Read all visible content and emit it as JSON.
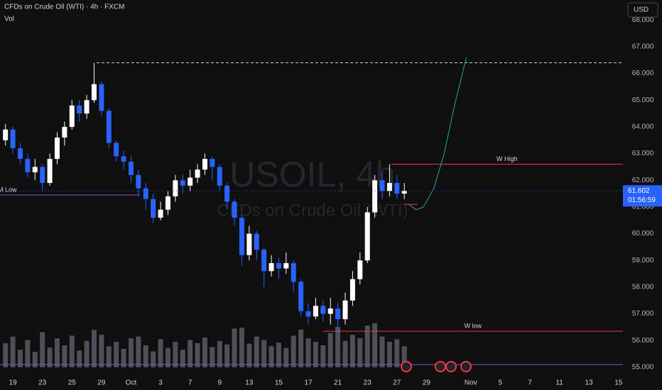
{
  "chart_data": {
    "type": "candlestick",
    "title": "CFDs on Crude Oil (WTI) · 4h · FXCM",
    "volume_label": "Vol",
    "currency": "USD",
    "watermark": "USOIL, 4h",
    "watermark_subtitle": "CFDs on Crude Oil (WTI)",
    "up_color": "#ffffff",
    "down_color": "#2962ff",
    "volume_color": "#5d606b",
    "x": [
      -0.5,
      0,
      0.5,
      1,
      1.5,
      2,
      2.5,
      3,
      3.5,
      4,
      4.5,
      5,
      5.5,
      6,
      6.5,
      7,
      7.5,
      8,
      8.5,
      9,
      9.5,
      10,
      10.5,
      11,
      11.5,
      12,
      12.5,
      13,
      13.5,
      14,
      14.5,
      15,
      15.5,
      16,
      16.5,
      17,
      17.5,
      18,
      18.5,
      19,
      19.5,
      20,
      20.5,
      21,
      21.5,
      22,
      22.5,
      23,
      23.5,
      24,
      24.5,
      25,
      25.5,
      26,
      26.5
    ],
    "open": [
      63.5,
      63.9,
      63.2,
      62.8,
      62.3,
      62.5,
      61.9,
      62.8,
      63.6,
      64.0,
      64.8,
      64.5,
      65.0,
      65.6,
      64.6,
      63.4,
      62.9,
      62.7,
      62.2,
      61.7,
      61.3,
      60.6,
      60.9,
      61.4,
      62.0,
      61.8,
      62.1,
      62.4,
      62.8,
      62.5,
      61.8,
      61.2,
      60.6,
      59.2,
      60.0,
      59.4,
      58.6,
      58.9,
      58.7,
      58.9,
      58.2,
      57.1,
      56.9,
      57.3,
      57.0,
      57.2,
      56.8,
      57.5,
      58.3,
      59.0,
      60.8,
      62.0,
      61.6,
      61.9,
      61.5
    ],
    "high": [
      64.1,
      64.0,
      63.4,
      63.0,
      62.8,
      62.6,
      63.0,
      63.8,
      64.2,
      65.0,
      65.0,
      65.2,
      66.4,
      65.7,
      64.7,
      63.5,
      63.1,
      62.9,
      62.4,
      61.9,
      61.5,
      61.2,
      61.6,
      62.2,
      62.2,
      62.4,
      62.6,
      63.0,
      62.9,
      62.6,
      61.9,
      61.3,
      60.7,
      60.3,
      60.1,
      59.5,
      59.2,
      59.1,
      59.3,
      59.0,
      58.3,
      57.4,
      57.6,
      57.5,
      57.6,
      57.4,
      57.8,
      58.6,
      59.3,
      61.0,
      62.2,
      62.3,
      62.6,
      62.2,
      61.9
    ],
    "low": [
      63.3,
      63.0,
      62.6,
      62.1,
      62.0,
      61.6,
      61.8,
      62.6,
      63.3,
      63.9,
      64.2,
      64.3,
      64.9,
      64.4,
      63.2,
      62.7,
      62.4,
      61.9,
      61.4,
      60.9,
      60.4,
      60.5,
      60.7,
      61.2,
      61.5,
      61.6,
      61.9,
      62.2,
      62.0,
      61.6,
      60.9,
      60.3,
      58.8,
      59.0,
      59.0,
      58.0,
      58.4,
      58.3,
      58.5,
      57.8,
      56.9,
      56.6,
      56.8,
      56.7,
      56.6,
      56.3,
      56.6,
      57.3,
      58.1,
      58.9,
      60.6,
      61.3,
      61.4,
      61.3,
      61.3
    ],
    "close": [
      63.9,
      63.2,
      62.8,
      62.3,
      62.5,
      61.9,
      62.8,
      63.6,
      64.0,
      64.8,
      64.5,
      65.0,
      65.6,
      64.6,
      63.4,
      62.9,
      62.7,
      62.2,
      61.7,
      61.3,
      60.6,
      60.9,
      61.4,
      62.0,
      61.8,
      62.1,
      62.4,
      62.8,
      62.5,
      61.8,
      61.2,
      60.6,
      59.2,
      60.0,
      59.4,
      58.6,
      58.9,
      58.7,
      58.9,
      58.2,
      57.1,
      56.9,
      57.3,
      57.0,
      57.2,
      56.8,
      57.5,
      58.3,
      59.0,
      60.8,
      62.0,
      61.6,
      61.9,
      61.5,
      61.602
    ],
    "volume": [
      55,
      70,
      40,
      62,
      35,
      80,
      45,
      66,
      50,
      72,
      38,
      60,
      85,
      74,
      48,
      58,
      42,
      66,
      70,
      50,
      36,
      64,
      44,
      58,
      40,
      62,
      55,
      68,
      46,
      60,
      52,
      88,
      90,
      54,
      70,
      62,
      48,
      56,
      44,
      72,
      86,
      66,
      58,
      50,
      78,
      92,
      60,
      74,
      66,
      95,
      100,
      70,
      58,
      64,
      48
    ],
    "vlim": [
      0,
      100
    ],
    "xlim": [
      -0.87,
      41.3
    ],
    "ylim": [
      54.68,
      68.75
    ],
    "yticks": [
      {
        "value": 55,
        "label": "55.000"
      },
      {
        "value": 56,
        "label": "56.000"
      },
      {
        "value": 57,
        "label": "57.000"
      },
      {
        "value": 58,
        "label": "58.000"
      },
      {
        "value": 59,
        "label": "59.000"
      },
      {
        "value": 60,
        "label": "60.000"
      },
      {
        "value": 61,
        "label": "61.000"
      },
      {
        "value": 62,
        "label": "62.000"
      },
      {
        "value": 63,
        "label": "63.000"
      },
      {
        "value": 64,
        "label": "64.000"
      },
      {
        "value": 65,
        "label": "65.000"
      },
      {
        "value": 66,
        "label": "66.000"
      },
      {
        "value": 67,
        "label": "67.000"
      },
      {
        "value": 68,
        "label": "68.000"
      }
    ],
    "xticks": [
      {
        "value": 0,
        "label": "19"
      },
      {
        "value": 2,
        "label": "23"
      },
      {
        "value": 4,
        "label": "25"
      },
      {
        "value": 6,
        "label": "29"
      },
      {
        "value": 8,
        "label": "Oct"
      },
      {
        "value": 10,
        "label": "3"
      },
      {
        "value": 12,
        "label": "7"
      },
      {
        "value": 14,
        "label": "9"
      },
      {
        "value": 16,
        "label": "13"
      },
      {
        "value": 18,
        "label": "15"
      },
      {
        "value": 20,
        "label": "17"
      },
      {
        "value": 22,
        "label": "21"
      },
      {
        "value": 24,
        "label": "23"
      },
      {
        "value": 26,
        "label": "27"
      },
      {
        "value": 28,
        "label": "29"
      },
      {
        "value": 31,
        "label": "Nov"
      },
      {
        "value": 33,
        "label": "5"
      },
      {
        "value": 35,
        "label": "7"
      },
      {
        "value": 37,
        "label": "11"
      },
      {
        "value": 39,
        "label": "13"
      },
      {
        "value": 41,
        "label": "15"
      }
    ],
    "levels": [
      {
        "value": 66.4,
        "from": 5.67,
        "color": "#d1d4dc",
        "dashed": true
      },
      {
        "name": "W High",
        "value": 62.6,
        "from": 25.6,
        "color": "#f23645"
      },
      {
        "value": 61.1,
        "from": 26.5,
        "to": 27.4,
        "color": "#f23645"
      },
      {
        "name": "W low",
        "value": 56.35,
        "from": 21,
        "color": "#f23645"
      },
      {
        "name": "M Low",
        "value": 61.45,
        "from": -0.87,
        "to": 8.6,
        "color": "#7e57c2"
      },
      {
        "value": 55.1,
        "from": -0.87,
        "color": "#7e57c2"
      }
    ],
    "projection": {
      "color": "#22ab94",
      "x": [
        26.8,
        27.3,
        27.8,
        28.5,
        29.2,
        29.9,
        30.7
      ],
      "y": [
        61.1,
        60.9,
        61.0,
        61.7,
        63.0,
        64.8,
        66.6
      ]
    },
    "last_price": {
      "value": 61.602,
      "label": "61.602"
    },
    "countdown": "01:56:59"
  }
}
